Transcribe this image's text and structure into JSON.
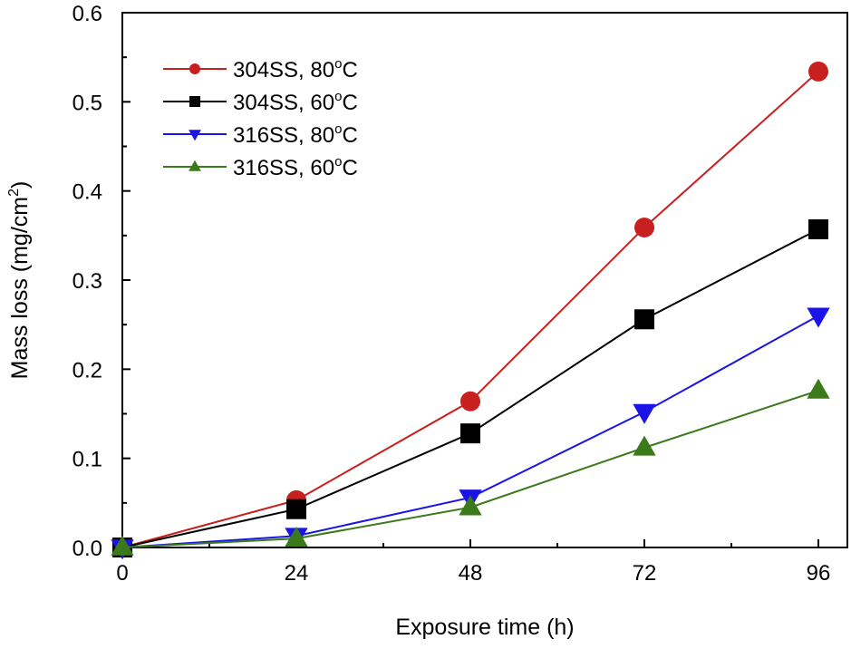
{
  "chart_data": {
    "type": "line",
    "title": "",
    "xlabel": "Exposure time (h)",
    "ylabel": "Mass loss (mg/cm2)",
    "ylabel_main": "Mass loss (mg/cm",
    "ylabel_sup": "2",
    "ylabel_end": ")",
    "xlim": [
      0,
      100
    ],
    "ylim": [
      0,
      0.6
    ],
    "xticks": [
      0,
      24,
      48,
      72,
      96
    ],
    "xtick_labels": [
      "0",
      "24",
      "48",
      "72",
      "96"
    ],
    "yticks": [
      0,
      0.1,
      0.2,
      0.3,
      0.4,
      0.5,
      0.6
    ],
    "ytick_labels": [
      "0.0",
      "0.1",
      "0.2",
      "0.3",
      "0.4",
      "0.5",
      "0.6"
    ],
    "grid": false,
    "legend_position": "top-left",
    "x": [
      0,
      24,
      48,
      72,
      96
    ],
    "series": [
      {
        "name": "304SS, 80°C",
        "label_main": "304SS, 80",
        "label_sup": "o",
        "label_end": "C",
        "color": "#c8201e",
        "marker": "circle",
        "values": [
          0,
          0.053,
          0.164,
          0.359,
          0.534
        ]
      },
      {
        "name": "304SS, 60°C",
        "label_main": "304SS, 60",
        "label_sup": "o",
        "label_end": "C",
        "color": "#000000",
        "marker": "square",
        "values": [
          0,
          0.043,
          0.128,
          0.256,
          0.357
        ]
      },
      {
        "name": "316SS, 80°C",
        "label_main": "316SS, 80",
        "label_sup": "o",
        "label_end": "C",
        "color": "#1a14e6",
        "marker": "triangle-down",
        "values": [
          0,
          0.013,
          0.056,
          0.152,
          0.26
        ]
      },
      {
        "name": "316SS, 60°C",
        "label_main": "316SS, 60",
        "label_sup": "o",
        "label_end": "C",
        "color": "#3a7a1a",
        "marker": "triangle-up",
        "values": [
          0,
          0.01,
          0.045,
          0.112,
          0.176
        ]
      }
    ]
  }
}
